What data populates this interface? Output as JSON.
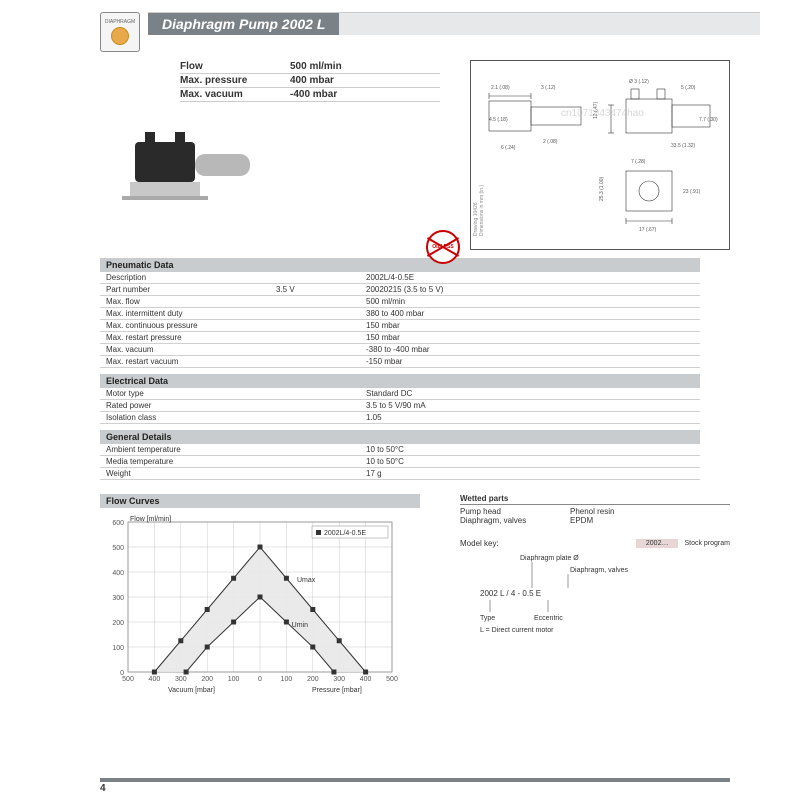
{
  "header": {
    "logo_label": "DIAPHRAGM",
    "title": "Diaphragm Pump 2002 L"
  },
  "key_specs": [
    {
      "label": "Flow",
      "value": "500 ml/min"
    },
    {
      "label": "Max. pressure",
      "value": "400 mbar"
    },
    {
      "label": "Max. vacuum",
      "value": "-400 mbar"
    }
  ],
  "badge": "OILLESS",
  "drawing": {
    "dims": [
      "2.1 (.08)",
      "3 (.12)",
      "Ø 3 (.12)",
      "5 (.20)",
      "4.5 (.18)",
      "2 (.08)",
      "1.6 (.06)",
      "12 (.47)",
      "3.5 (.14)",
      "6 (.24)",
      "33.5 (1.32)",
      "7.7 (.30)",
      "7 (.28)",
      "25.3 (1.00)",
      "23 (.91)",
      "17 (.67)"
    ],
    "note": "Drawing 10426\nDimensions in mm (in.)",
    "watermark": "cn1071843474hao"
  },
  "sections": [
    {
      "title": "Pneumatic Data",
      "rows": [
        [
          "Description",
          "",
          "2002L/4-0.5E"
        ],
        [
          "Part number",
          "3.5 V",
          "20020215 (3.5 to 5 V)"
        ],
        [
          "Max. flow",
          "",
          "500 ml/min"
        ],
        [
          "Max. intermittent duty",
          "",
          "380 to 400 mbar"
        ],
        [
          "Max. continuous pressure",
          "",
          "150 mbar"
        ],
        [
          "Max. restart pressure",
          "",
          "150 mbar"
        ],
        [
          "Max. vacuum",
          "",
          "-380 to -400 mbar"
        ],
        [
          "Max. restart vacuum",
          "",
          "-150 mbar"
        ]
      ]
    },
    {
      "title": "Electrical Data",
      "rows": [
        [
          "Motor type",
          "",
          "Standard DC"
        ],
        [
          "Rated power",
          "",
          "3.5 to 5 V/90 mA"
        ],
        [
          "Isolation class",
          "",
          "1.05"
        ]
      ]
    },
    {
      "title": "General Details",
      "rows": [
        [
          "Ambient temperature",
          "",
          "10 to 50°C"
        ],
        [
          "Media temperature",
          "",
          "10 to 50°C"
        ],
        [
          "Weight",
          "",
          "17 g"
        ]
      ]
    }
  ],
  "flow_curves": {
    "title": "Flow Curves",
    "y_title": "Flow [ml/min]",
    "x_left": "Vacuum [mbar]",
    "x_right": "Pressure [mbar]",
    "legend": "2002L/4-0.5E",
    "umax": "Umax",
    "umin": "Umin",
    "ylim": [
      0,
      600
    ],
    "ytick": 100,
    "xticks": [
      500,
      400,
      300,
      200,
      100,
      0,
      100,
      200,
      300,
      400,
      500
    ],
    "series_umax": [
      [
        -400,
        0
      ],
      [
        -300,
        125
      ],
      [
        -200,
        250
      ],
      [
        -100,
        375
      ],
      [
        0,
        500
      ],
      [
        100,
        375
      ],
      [
        200,
        250
      ],
      [
        300,
        125
      ],
      [
        400,
        0
      ]
    ],
    "series_umin": [
      [
        -280,
        0
      ],
      [
        -200,
        100
      ],
      [
        -100,
        200
      ],
      [
        0,
        300
      ],
      [
        100,
        200
      ],
      [
        200,
        100
      ],
      [
        280,
        0
      ]
    ],
    "marker": "square",
    "marker_size": 5,
    "line_color": "#333333",
    "fill_color": "#e8e8e8",
    "grid_color": "#cccccc",
    "bg": "#ffffff",
    "font_size": 7
  },
  "wetted": {
    "title": "Wetted parts",
    "rows": [
      [
        "Pump head",
        "Phenol resin"
      ],
      [
        "Diaphragm, valves",
        "EPDM"
      ]
    ]
  },
  "model_key": {
    "label": "Model key:",
    "stock": "2002…",
    "stock_label": "Stock program",
    "lines": [
      "Diaphragm plate Ø",
      "Diaphragm, valves"
    ],
    "example": "2002 L / 4 - 0.5 E",
    "notes": [
      "Type",
      "Eccentric",
      "L = Direct current motor"
    ]
  },
  "page_number": "4"
}
